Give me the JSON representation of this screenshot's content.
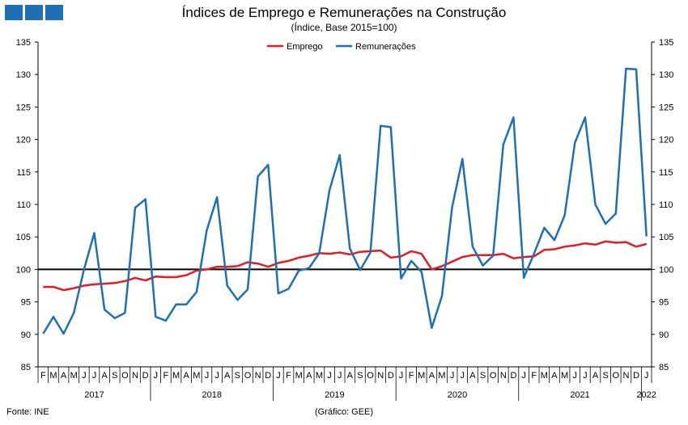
{
  "header": {
    "title": "Índices de Emprego e Remunerações na Construção",
    "subtitle": "(Índice, Base 2015=100)"
  },
  "footer": {
    "source": "Fonte: INE",
    "credit": "(Gráfico: GEE)"
  },
  "colors": {
    "logo": "#1f6fb5",
    "emprego": "#e31b23",
    "remuneracoes": "#1f6fb5",
    "baseline": "#000000"
  },
  "chart_data": {
    "type": "line",
    "title": "Índices de Emprego e Remunerações na Construção",
    "subtitle": "(Índice, Base 2015=100)",
    "ylim": [
      85,
      135
    ],
    "yticks": [
      85,
      90,
      95,
      100,
      105,
      110,
      115,
      120,
      125,
      130,
      135
    ],
    "reference_line": 100,
    "legend_position": "top-center",
    "month_letters": [
      "F",
      "M",
      "A",
      "M",
      "J",
      "J",
      "A",
      "S",
      "O",
      "N",
      "D",
      "J",
      "F",
      "M",
      "A",
      "M",
      "J",
      "J",
      "A",
      "S",
      "O",
      "N",
      "D",
      "J",
      "F",
      "M",
      "A",
      "M",
      "J",
      "J",
      "A",
      "S",
      "O",
      "N",
      "D",
      "J",
      "F",
      "M",
      "A",
      "M",
      "J",
      "J",
      "A",
      "S",
      "O",
      "N",
      "D",
      "J",
      "F",
      "M",
      "A",
      "M",
      "J",
      "J",
      "A",
      "S",
      "O",
      "N",
      "D",
      "J"
    ],
    "year_groups": [
      {
        "label": "2017",
        "start": 0,
        "end": 10
      },
      {
        "label": "2018",
        "start": 11,
        "end": 22
      },
      {
        "label": "2019",
        "start": 23,
        "end": 34
      },
      {
        "label": "2020",
        "start": 35,
        "end": 46
      },
      {
        "label": "2021",
        "start": 47,
        "end": 58
      },
      {
        "label": "2022",
        "start": 59,
        "end": 59
      }
    ],
    "series": [
      {
        "name": "Emprego",
        "color": "#e31b23",
        "values": [
          97.3,
          97.3,
          96.8,
          97.1,
          97.5,
          97.7,
          97.8,
          97.9,
          98.2,
          98.7,
          98.3,
          98.9,
          98.8,
          98.8,
          99.1,
          99.8,
          100.0,
          100.4,
          100.4,
          100.5,
          101.1,
          100.9,
          100.4,
          101.0,
          101.3,
          101.8,
          102.1,
          102.5,
          102.4,
          102.6,
          102.3,
          102.7,
          102.8,
          102.9,
          101.8,
          102.0,
          102.8,
          102.4,
          100.0,
          100.5,
          101.2,
          101.9,
          102.2,
          102.2,
          102.2,
          102.4,
          101.7,
          101.9,
          102.0,
          103.0,
          103.1,
          103.5,
          103.7,
          104.0,
          103.8,
          104.3,
          104.1,
          104.2,
          103.5,
          103.9
        ]
      },
      {
        "name": "Remunerações",
        "color": "#1f6fb5",
        "values": [
          90.1,
          92.7,
          90.1,
          93.3,
          100.0,
          105.6,
          93.8,
          92.5,
          93.3,
          109.5,
          110.8,
          92.7,
          92.1,
          94.6,
          94.6,
          96.5,
          106.0,
          111.1,
          97.5,
          95.3,
          96.9,
          114.3,
          116.1,
          96.3,
          97.0,
          99.8,
          100.2,
          102.5,
          112.2,
          117.6,
          103.2,
          99.9,
          102.6,
          122.1,
          121.9,
          98.6,
          101.3,
          99.6,
          91.0,
          95.9,
          109.6,
          117.0,
          103.5,
          100.6,
          102.1,
          119.2,
          123.4,
          98.7,
          102.4,
          106.4,
          104.5,
          108.3,
          119.5,
          123.4,
          110.0,
          107.0,
          108.6,
          130.9,
          130.8,
          105.1
        ]
      }
    ]
  }
}
